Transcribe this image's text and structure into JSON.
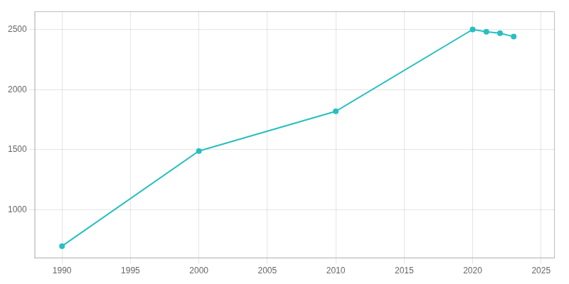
{
  "chart_data": {
    "type": "line",
    "x": [
      1990,
      2000,
      2010,
      2020,
      2021,
      2022,
      2023
    ],
    "values": [
      700,
      1490,
      1820,
      2500,
      2480,
      2468,
      2440
    ],
    "color": "#2abfbf",
    "marker": "circle",
    "xlim": [
      1988,
      2026
    ],
    "ylim": [
      600,
      2650
    ],
    "xticks": [
      1990,
      1995,
      2000,
      2005,
      2010,
      2015,
      2020,
      2025
    ],
    "yticks": [
      1000,
      1500,
      2000,
      2500
    ],
    "grid": true
  }
}
